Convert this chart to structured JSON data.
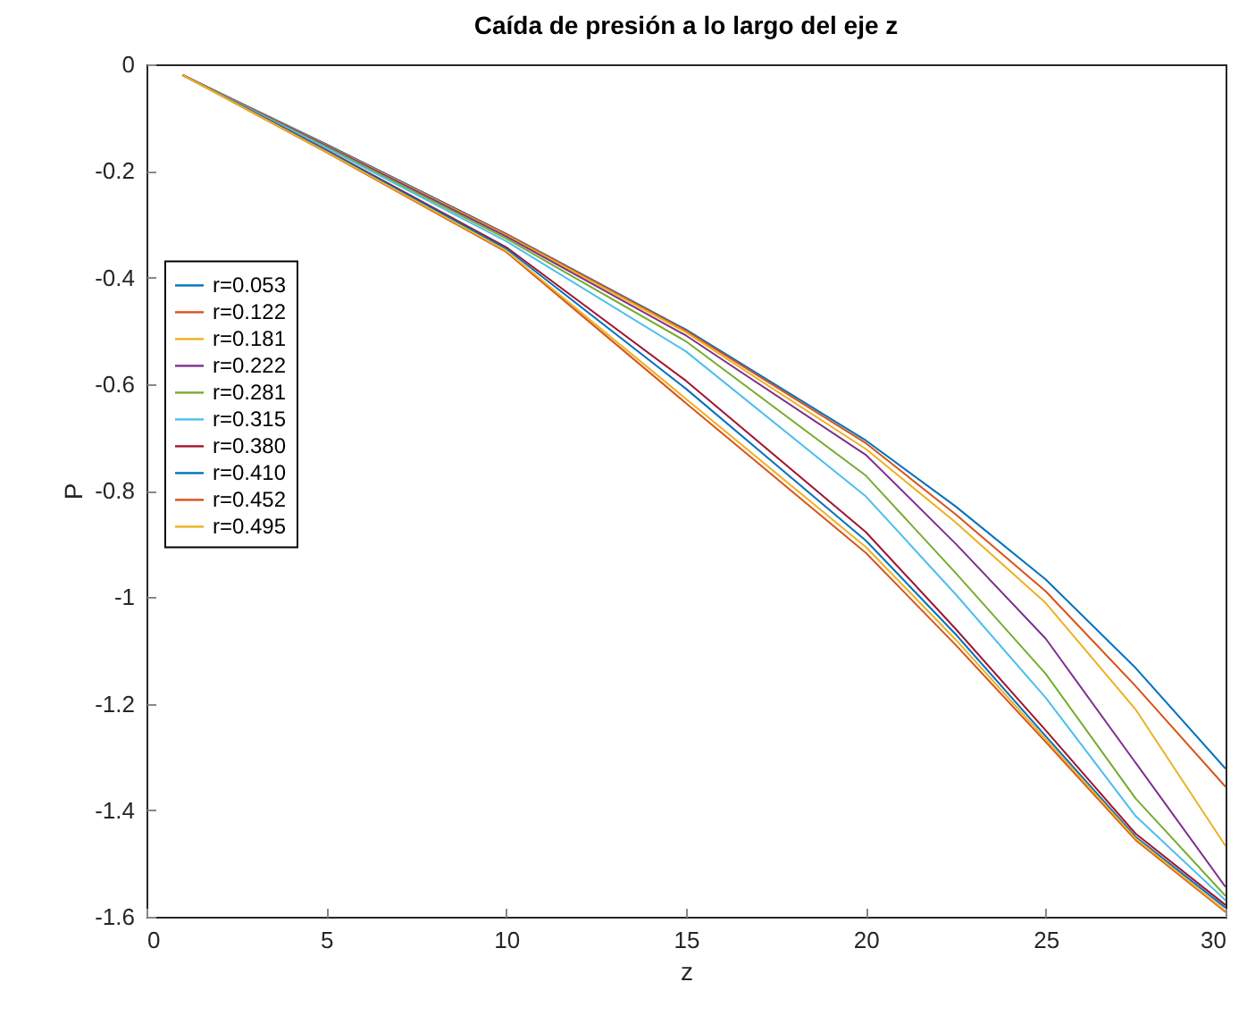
{
  "chart_data": {
    "type": "line",
    "title": "Caída de presión a lo largo del eje z",
    "xlabel": "z",
    "ylabel": "P",
    "x": [
      1,
      5,
      10,
      15,
      20,
      22.5,
      25,
      27.5,
      30
    ],
    "xlim": [
      0,
      30
    ],
    "xticks": [
      0,
      5,
      10,
      15,
      20,
      25,
      30
    ],
    "ylim": [
      -1.6,
      0
    ],
    "yticks": [
      -1.6,
      -1.4,
      -1.2,
      -1,
      -0.8,
      -0.6,
      -0.4,
      -0.2,
      0
    ],
    "legend": "top left",
    "series": [
      {
        "name": "r=0.053",
        "color": "#0072bd",
        "values": [
          -0.02,
          -0.15,
          -0.318,
          -0.498,
          -0.706,
          -0.83,
          -0.967,
          -1.133,
          -1.322
        ]
      },
      {
        "name": "r=0.122",
        "color": "#d95319",
        "values": [
          -0.02,
          -0.151,
          -0.319,
          -0.5,
          -0.711,
          -0.845,
          -0.989,
          -1.167,
          -1.356
        ]
      },
      {
        "name": "r=0.181",
        "color": "#edb120",
        "values": [
          -0.02,
          -0.152,
          -0.321,
          -0.503,
          -0.722,
          -0.86,
          -1.011,
          -1.211,
          -1.467
        ]
      },
      {
        "name": "r=0.222",
        "color": "#7e2f8e",
        "values": [
          -0.02,
          -0.153,
          -0.323,
          -0.509,
          -0.733,
          -0.9,
          -1.078,
          -1.311,
          -1.544
        ]
      },
      {
        "name": "r=0.281",
        "color": "#77ac30",
        "values": [
          -0.02,
          -0.155,
          -0.327,
          -0.52,
          -0.772,
          -0.955,
          -1.144,
          -1.378,
          -1.561
        ]
      },
      {
        "name": "r=0.315",
        "color": "#4dbeee",
        "values": [
          -0.02,
          -0.157,
          -0.332,
          -0.539,
          -0.811,
          -0.995,
          -1.189,
          -1.411,
          -1.569
        ]
      },
      {
        "name": "r=0.380",
        "color": "#a2142f",
        "values": [
          -0.02,
          -0.161,
          -0.343,
          -0.594,
          -0.878,
          -1.06,
          -1.25,
          -1.444,
          -1.578
        ]
      },
      {
        "name": "r=0.410",
        "color": "#0072bd",
        "values": [
          -0.02,
          -0.162,
          -0.346,
          -0.609,
          -0.894,
          -1.07,
          -1.261,
          -1.45,
          -1.583
        ]
      },
      {
        "name": "r=0.452",
        "color": "#d95319",
        "values": [
          -0.02,
          -0.165,
          -0.352,
          -0.636,
          -0.917,
          -1.09,
          -1.272,
          -1.456,
          -1.591
        ]
      },
      {
        "name": "r=0.495",
        "color": "#edb120",
        "values": [
          -0.02,
          -0.164,
          -0.35,
          -0.628,
          -0.906,
          -1.08,
          -1.267,
          -1.453,
          -1.589
        ]
      }
    ]
  }
}
